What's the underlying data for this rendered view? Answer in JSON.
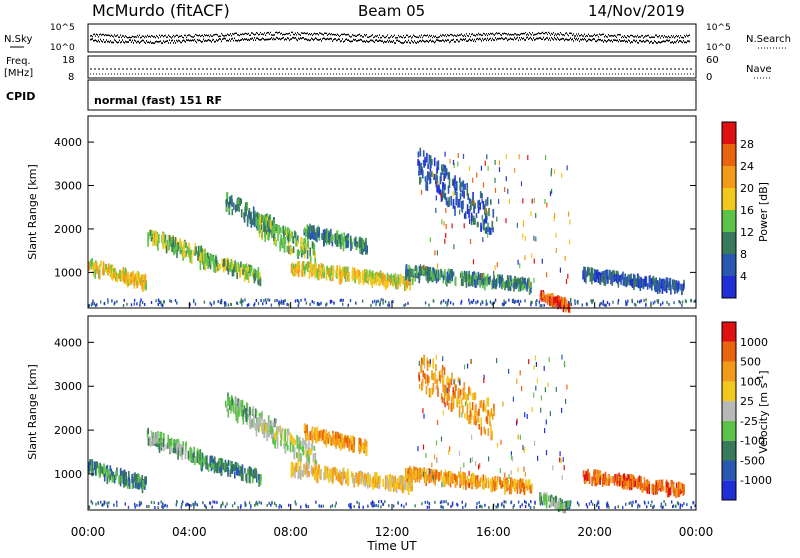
{
  "header": {
    "title": "McMurdo (fitACF)",
    "beam": "Beam 05",
    "date": "14/Nov/2019"
  },
  "top_panels": {
    "nsky": {
      "label": "N.Sky",
      "tick_top": "10^5",
      "tick_bottom": "10^0"
    },
    "nsearch": {
      "label": "N.Search",
      "tick_top": "10^5",
      "tick_bottom": "10^0"
    },
    "freq": {
      "label_line1": "Freq.",
      "label_line2": "[MHz]",
      "tick_top": "18",
      "tick_bottom": "8"
    },
    "nave": {
      "label": "Nave",
      "tick_top": "60",
      "tick_bottom": "0"
    },
    "cpid": {
      "label": "CPID",
      "text": "normal (fast) 151 RF"
    }
  },
  "chart_data": [
    {
      "type": "heatmap",
      "title": "",
      "xlabel": "",
      "ylabel": "Slant Range [km]",
      "xlim_hours": [
        0,
        24
      ],
      "ylim": [
        180,
        4600
      ],
      "yticks": [
        "1000",
        "2000",
        "3000",
        "4000"
      ],
      "colorbar": {
        "label": "Power [dB]",
        "ticks": [
          "4",
          "8",
          "12",
          "16",
          "20",
          "24",
          "28"
        ],
        "colors": [
          "#1f2fd8",
          "#2a57b0",
          "#3a7a5a",
          "#5cc24a",
          "#f2c81e",
          "#f29a1a",
          "#e8640e",
          "#e01010"
        ]
      },
      "echo_bands": [
        {
          "t0": 0.0,
          "t1": 2.3,
          "r0": 700,
          "r1": 1200,
          "level": 4
        },
        {
          "t0": 2.3,
          "t1": 4.6,
          "r0": 1300,
          "r1": 1900,
          "level": 3
        },
        {
          "t0": 4.4,
          "t1": 6.8,
          "r0": 850,
          "r1": 1350,
          "level": 3
        },
        {
          "t0": 5.4,
          "t1": 7.4,
          "r0": 1900,
          "r1": 2700,
          "level": 2
        },
        {
          "t0": 6.6,
          "t1": 9.0,
          "r0": 1300,
          "r1": 2200,
          "level": 3
        },
        {
          "t0": 8.5,
          "t1": 11.0,
          "r0": 1550,
          "r1": 2000,
          "level": 2
        },
        {
          "t0": 8.0,
          "t1": 12.8,
          "r0": 700,
          "r1": 1150,
          "level": 4
        },
        {
          "t0": 12.5,
          "t1": 17.5,
          "r0": 650,
          "r1": 1050,
          "level": 2
        },
        {
          "t0": 13.0,
          "t1": 16.0,
          "r0": 2000,
          "r1": 3600,
          "level": 1
        },
        {
          "t0": 17.8,
          "t1": 19.0,
          "r0": 200,
          "r1": 500,
          "level": 6
        },
        {
          "t0": 19.5,
          "t1": 23.5,
          "r0": 600,
          "r1": 1000,
          "level": 1
        }
      ]
    },
    {
      "type": "heatmap",
      "title": "",
      "xlabel": "Time UT",
      "ylabel": "Slant Range [km]",
      "xlim_hours": [
        0,
        24
      ],
      "ylim": [
        180,
        4600
      ],
      "xticks": [
        "00:00",
        "04:00",
        "08:00",
        "12:00",
        "16:00",
        "20:00",
        "00:00"
      ],
      "yticks": [
        "1000",
        "2000",
        "3000",
        "4000"
      ],
      "colorbar": {
        "label": "Velocity [m s^-1]",
        "ticks": [
          "1000",
          "500",
          "100",
          "25",
          "-25",
          "-100",
          "-500",
          "-1000"
        ],
        "colors": [
          "#1f2fd8",
          "#2a57b0",
          "#3a7a5a",
          "#5cc24a",
          "#b8b8b8",
          "#f2c81e",
          "#f29a1a",
          "#e8640e",
          "#e01010"
        ]
      },
      "echo_bands": [
        {
          "t0": 0.0,
          "t1": 2.3,
          "r0": 700,
          "r1": 1200,
          "level": 2
        },
        {
          "t0": 2.3,
          "t1": 4.6,
          "r0": 1300,
          "r1": 1900,
          "level": 3
        },
        {
          "t0": 4.4,
          "t1": 6.8,
          "r0": 850,
          "r1": 1350,
          "level": 2
        },
        {
          "t0": 5.4,
          "t1": 7.4,
          "r0": 1900,
          "r1": 2700,
          "level": 3
        },
        {
          "t0": 6.6,
          "t1": 9.0,
          "r0": 1300,
          "r1": 2200,
          "level": 4
        },
        {
          "t0": 8.5,
          "t1": 11.0,
          "r0": 1550,
          "r1": 2000,
          "level": 6
        },
        {
          "t0": 8.0,
          "t1": 12.8,
          "r0": 700,
          "r1": 1150,
          "level": 5
        },
        {
          "t0": 12.5,
          "t1": 17.5,
          "r0": 650,
          "r1": 1050,
          "level": 6
        },
        {
          "t0": 13.0,
          "t1": 16.0,
          "r0": 2000,
          "r1": 3600,
          "level": 6
        },
        {
          "t0": 17.8,
          "t1": 19.0,
          "r0": 200,
          "r1": 500,
          "level": 3
        },
        {
          "t0": 19.5,
          "t1": 23.5,
          "r0": 600,
          "r1": 1000,
          "level": 7
        }
      ]
    }
  ]
}
